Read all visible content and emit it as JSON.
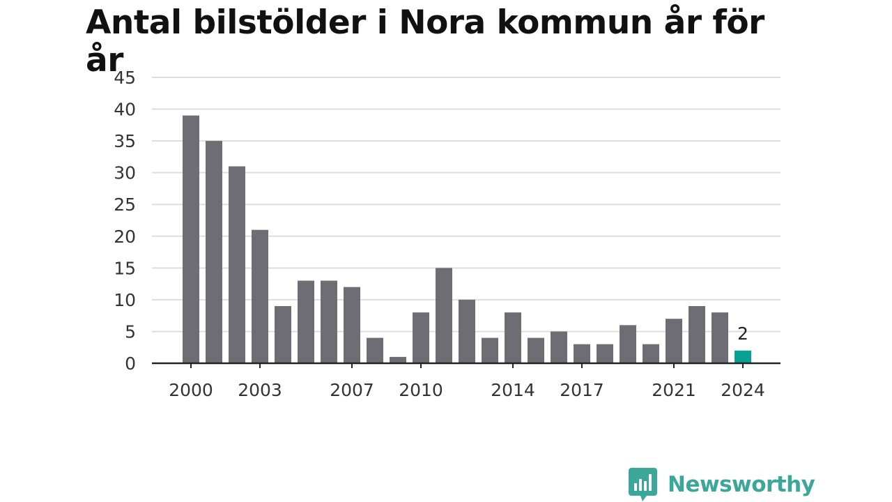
{
  "title": "Antal bilstölder i Nora kommun år för år",
  "brand": {
    "name": "Newsworthy",
    "color": "#3aa79a",
    "icon": "newsworthy-logo-icon"
  },
  "colors": {
    "bar": "#6e6d73",
    "highlight": "#0aa193",
    "grid": "#dddddd",
    "axis": "#222222",
    "text": "#333333"
  },
  "chart_data": {
    "type": "bar",
    "categories": [
      "2000",
      "2001",
      "2002",
      "2003",
      "2004",
      "2005",
      "2006",
      "2007",
      "2008",
      "2009",
      "2010",
      "2011",
      "2012",
      "2013",
      "2014",
      "2015",
      "2016",
      "2017",
      "2018",
      "2019",
      "2020",
      "2021",
      "2022",
      "2023",
      "2024"
    ],
    "values": [
      39,
      35,
      31,
      21,
      9,
      13,
      13,
      12,
      4,
      1,
      8,
      15,
      10,
      4,
      8,
      4,
      5,
      3,
      3,
      6,
      3,
      7,
      9,
      8,
      2
    ],
    "xtick_labels": [
      "2000",
      "2003",
      "2007",
      "2010",
      "2014",
      "2017",
      "2021",
      "2024"
    ],
    "yticks": [
      0,
      5,
      10,
      15,
      20,
      25,
      30,
      35,
      40,
      45
    ],
    "ylim": [
      0,
      45
    ],
    "highlight_index": 24,
    "data_labels": [
      {
        "index": 24,
        "text": "2"
      }
    ],
    "grid": true,
    "xlabel": "",
    "ylabel": ""
  }
}
